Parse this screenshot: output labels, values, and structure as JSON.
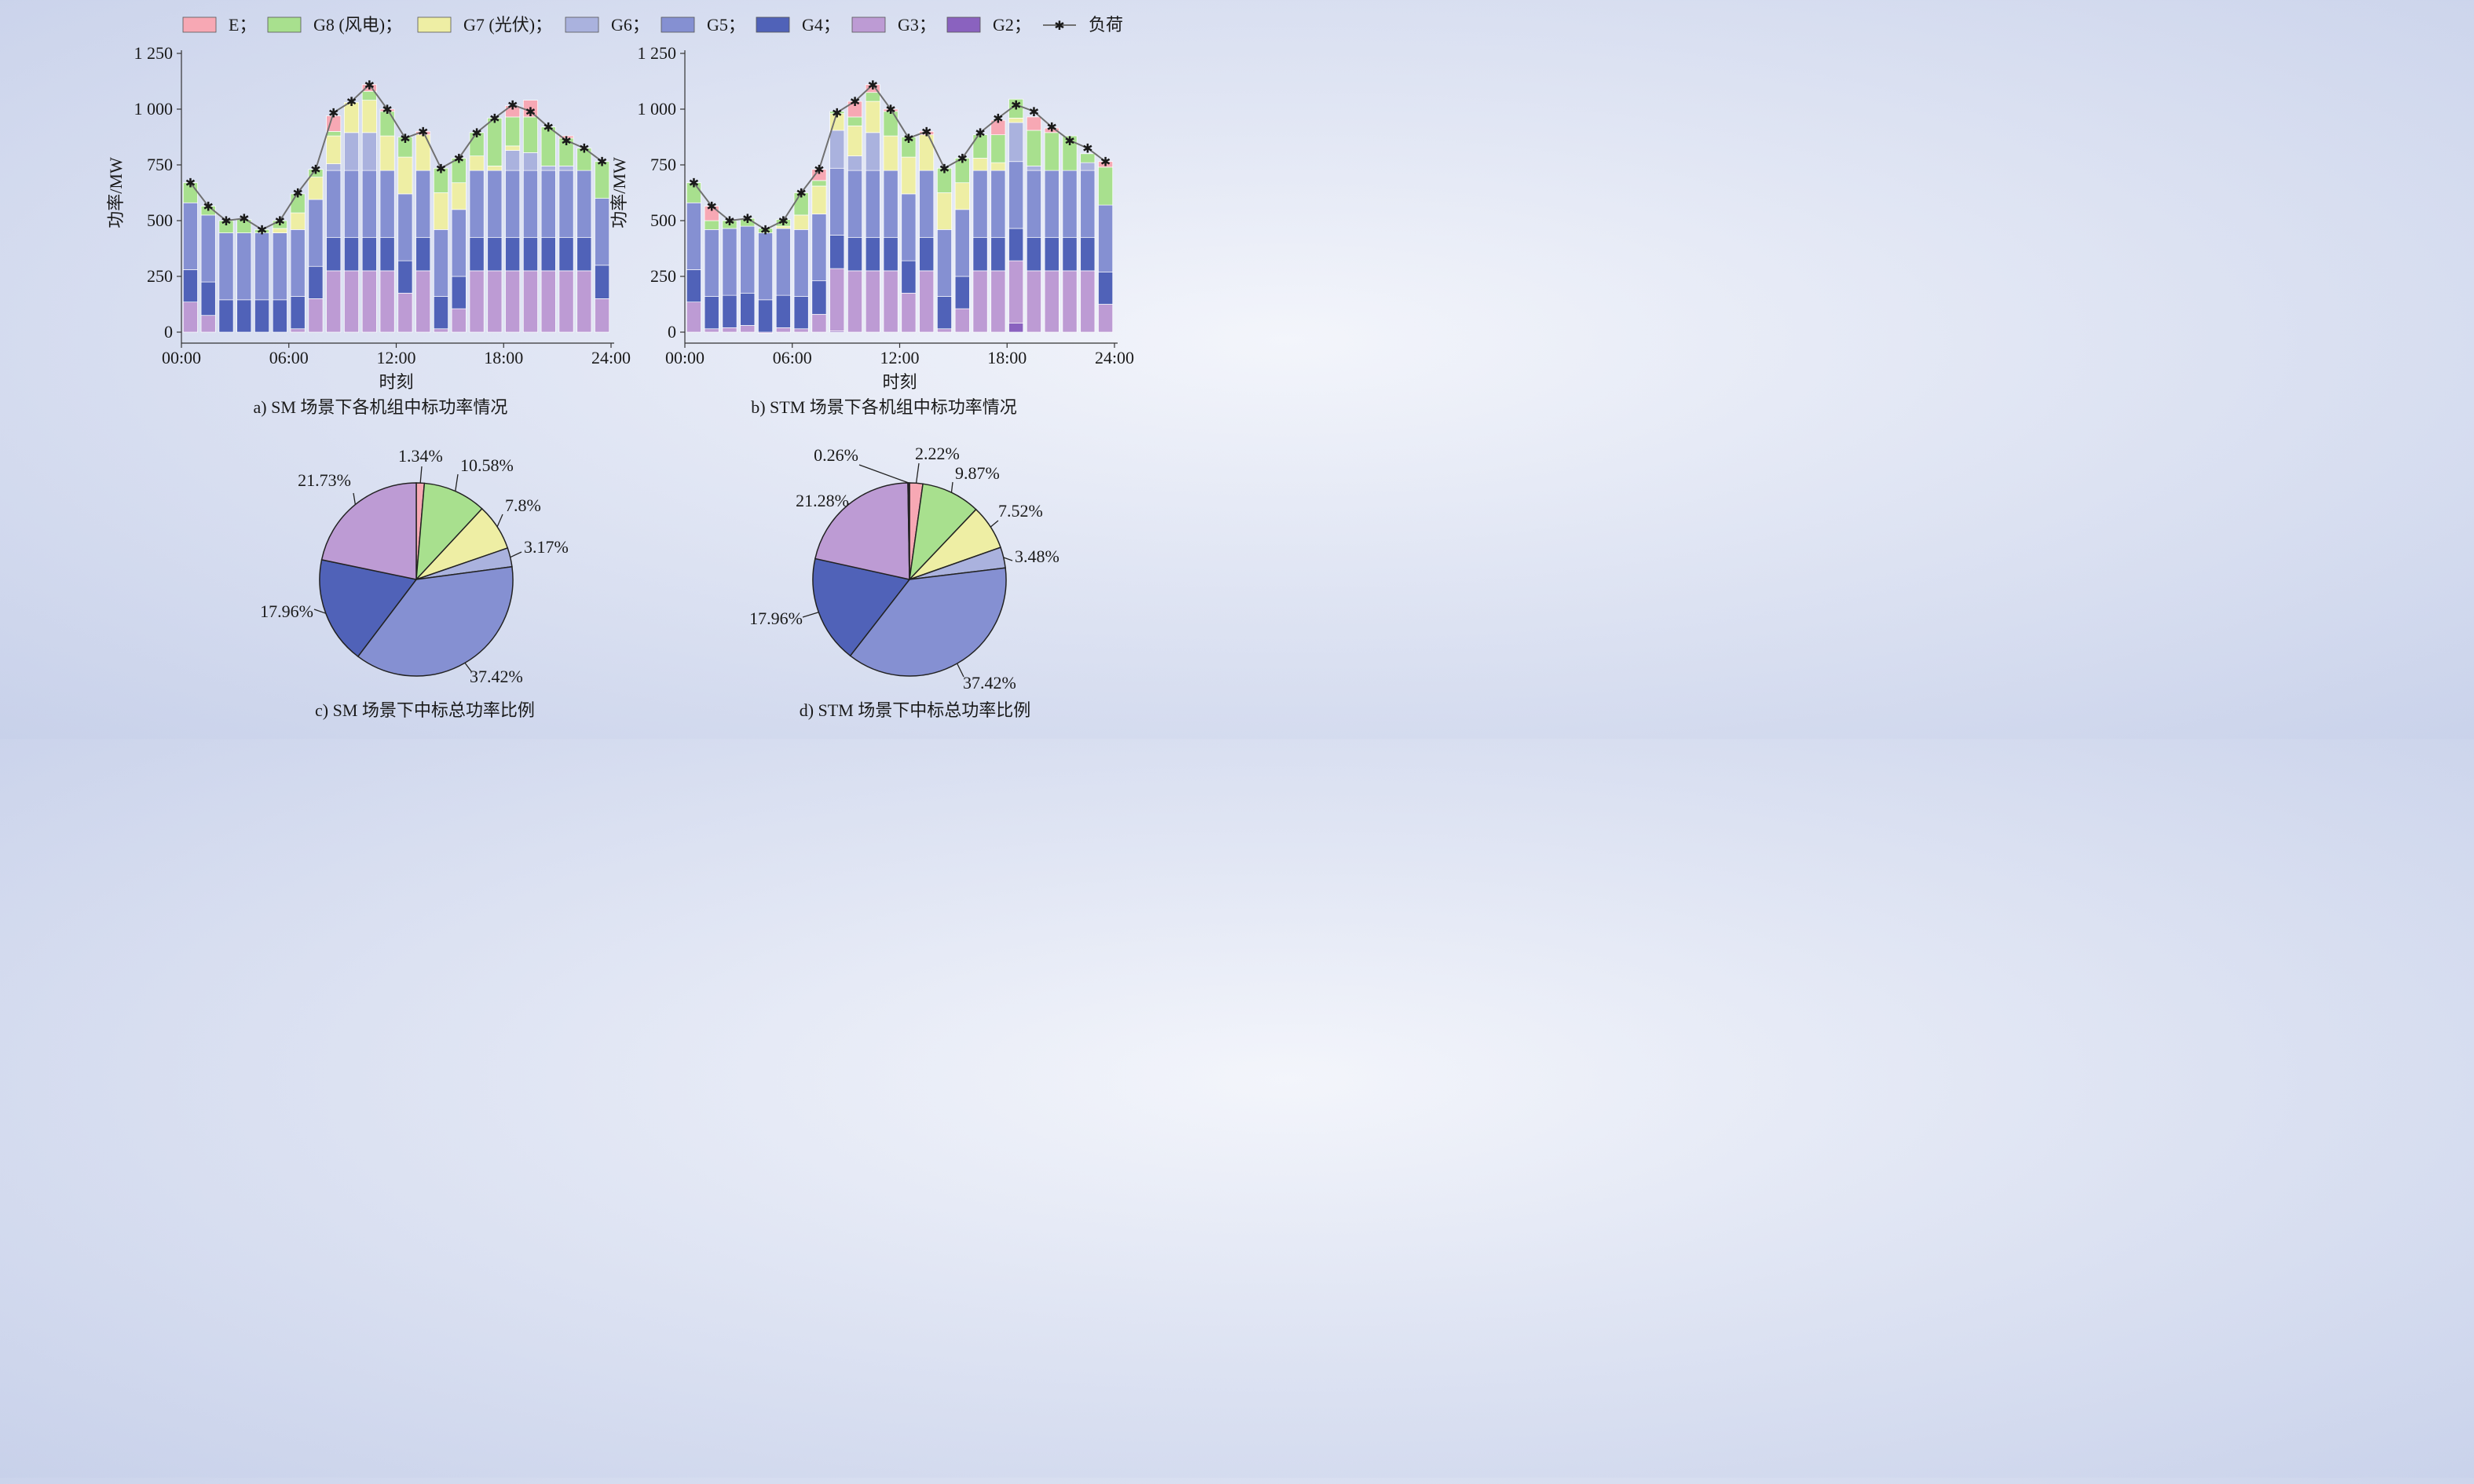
{
  "legend": {
    "items": [
      {
        "label": "E；",
        "color": "#f7a8b4",
        "kind": "box"
      },
      {
        "label": "G8 (风电)；",
        "color": "#a8e08e",
        "kind": "box"
      },
      {
        "label": "G7 (光伏)；",
        "color": "#eeeea4",
        "kind": "box"
      },
      {
        "label": "G6；",
        "color": "#aab2de",
        "kind": "box"
      },
      {
        "label": "G5；",
        "color": "#8590d2",
        "kind": "box"
      },
      {
        "label": "G4；",
        "color": "#5062b8",
        "kind": "box"
      },
      {
        "label": "G3；",
        "color": "#bd9bd4",
        "kind": "box"
      },
      {
        "label": "G2；",
        "color": "#8a62bf",
        "kind": "box"
      },
      {
        "label": "负荷",
        "color": "#707070",
        "kind": "line"
      }
    ]
  },
  "chart_data": [
    {
      "id": "a",
      "type": "bar",
      "stacked": true,
      "caption": "a)  SM 场景下各机组中标功率情况",
      "xlabel": "时刻",
      "ylabel": "功率/MW",
      "xticks": [
        "00:00",
        "06:00",
        "12:00",
        "18:00",
        "24:00"
      ],
      "yticks": [
        "0",
        "250",
        "500",
        "750",
        "1 000",
        "1 250"
      ],
      "ylim": [
        0,
        1250
      ],
      "hours": [
        1,
        2,
        3,
        4,
        5,
        6,
        7,
        8,
        9,
        10,
        11,
        12,
        13,
        14,
        15,
        16,
        17,
        18,
        19,
        20,
        21,
        22,
        23,
        24
      ],
      "series": [
        {
          "name": "G2",
          "color": "#8a62bf",
          "values": [
            0,
            0,
            0,
            0,
            0,
            0,
            0,
            0,
            0,
            0,
            0,
            0,
            0,
            0,
            0,
            0,
            0,
            0,
            0,
            0,
            0,
            0,
            0,
            0
          ]
        },
        {
          "name": "G3",
          "color": "#bd9bd4",
          "values": [
            135,
            75,
            0,
            0,
            0,
            0,
            15,
            150,
            275,
            275,
            275,
            275,
            175,
            275,
            15,
            105,
            275,
            275,
            275,
            275,
            275,
            275,
            275,
            150
          ]
        },
        {
          "name": "G4",
          "color": "#5062b8",
          "values": [
            145,
            150,
            145,
            145,
            145,
            145,
            145,
            145,
            150,
            150,
            150,
            150,
            145,
            150,
            145,
            145,
            150,
            150,
            150,
            150,
            150,
            150,
            150,
            150
          ]
        },
        {
          "name": "G5",
          "color": "#8590d2",
          "values": [
            300,
            300,
            300,
            300,
            300,
            300,
            300,
            300,
            300,
            300,
            300,
            300,
            300,
            300,
            300,
            300,
            300,
            300,
            300,
            300,
            300,
            300,
            300,
            300
          ]
        },
        {
          "name": "G6",
          "color": "#aab2de",
          "values": [
            0,
            0,
            0,
            0,
            0,
            0,
            0,
            0,
            30,
            170,
            170,
            0,
            0,
            0,
            0,
            0,
            0,
            0,
            90,
            80,
            20,
            20,
            0,
            0
          ]
        },
        {
          "name": "G7",
          "color": "#eeeea4",
          "values": [
            0,
            0,
            0,
            0,
            0,
            20,
            75,
            100,
            125,
            135,
            145,
            155,
            165,
            160,
            165,
            120,
            65,
            20,
            20,
            0,
            0,
            0,
            0,
            0
          ]
        },
        {
          "name": "G8",
          "color": "#a8e08e",
          "values": [
            90,
            40,
            55,
            60,
            15,
            35,
            85,
            35,
            20,
            0,
            40,
            110,
            90,
            0,
            110,
            110,
            105,
            215,
            130,
            160,
            175,
            125,
            100,
            165
          ]
        },
        {
          "name": "E",
          "color": "#f7a8b4",
          "values": [
            0,
            0,
            0,
            0,
            0,
            0,
            0,
            0,
            70,
            0,
            30,
            10,
            0,
            15,
            0,
            0,
            0,
            0,
            50,
            75,
            0,
            10,
            0,
            0
          ]
        }
      ],
      "load": [
        670,
        565,
        500,
        510,
        460,
        500,
        625,
        730,
        985,
        1035,
        1110,
        1000,
        870,
        900,
        735,
        780,
        895,
        960,
        1020,
        990,
        920,
        860,
        825,
        765
      ]
    },
    {
      "id": "b",
      "type": "bar",
      "stacked": true,
      "caption": "b) STM 场景下各机组中标功率情况",
      "xlabel": "时刻",
      "ylabel": "功率/MW",
      "xticks": [
        "00:00",
        "06:00",
        "12:00",
        "18:00",
        "24:00"
      ],
      "yticks": [
        "0",
        "250",
        "500",
        "750",
        "1 000",
        "1 250"
      ],
      "ylim": [
        0,
        1250
      ],
      "hours": [
        1,
        2,
        3,
        4,
        5,
        6,
        7,
        8,
        9,
        10,
        11,
        12,
        13,
        14,
        15,
        16,
        17,
        18,
        19,
        20,
        21,
        22,
        23,
        24
      ],
      "series": [
        {
          "name": "G2",
          "color": "#8a62bf",
          "values": [
            0,
            0,
            0,
            0,
            0,
            0,
            0,
            0,
            5,
            0,
            0,
            0,
            0,
            0,
            0,
            0,
            0,
            0,
            40,
            0,
            0,
            0,
            0,
            0
          ]
        },
        {
          "name": "G3",
          "color": "#bd9bd4",
          "values": [
            135,
            15,
            20,
            30,
            -5,
            20,
            15,
            80,
            280,
            275,
            275,
            275,
            175,
            275,
            15,
            105,
            275,
            275,
            280,
            275,
            275,
            275,
            275,
            125
          ]
        },
        {
          "name": "G4",
          "color": "#5062b8",
          "values": [
            145,
            145,
            145,
            145,
            145,
            145,
            145,
            150,
            150,
            150,
            150,
            150,
            145,
            150,
            145,
            145,
            150,
            150,
            145,
            150,
            150,
            150,
            150,
            145
          ]
        },
        {
          "name": "G5",
          "color": "#8590d2",
          "values": [
            300,
            300,
            300,
            300,
            300,
            300,
            300,
            300,
            300,
            300,
            300,
            300,
            300,
            300,
            300,
            300,
            300,
            300,
            300,
            300,
            300,
            300,
            300,
            300
          ]
        },
        {
          "name": "G6",
          "color": "#aab2de",
          "values": [
            0,
            0,
            0,
            0,
            0,
            0,
            0,
            0,
            170,
            65,
            170,
            0,
            0,
            0,
            0,
            0,
            0,
            0,
            175,
            20,
            0,
            0,
            35,
            0
          ]
        },
        {
          "name": "G7",
          "color": "#eeeea4",
          "values": [
            0,
            0,
            0,
            0,
            0,
            10,
            65,
            125,
            75,
            135,
            140,
            155,
            165,
            160,
            165,
            120,
            55,
            35,
            20,
            0,
            0,
            0,
            0,
            0
          ]
        },
        {
          "name": "G8",
          "color": "#a8e08e",
          "values": [
            90,
            40,
            35,
            35,
            20,
            30,
            100,
            25,
            10,
            40,
            40,
            110,
            90,
            0,
            110,
            110,
            105,
            125,
            85,
            160,
            170,
            155,
            40,
            170
          ]
        },
        {
          "name": "E",
          "color": "#f7a8b4",
          "values": [
            0,
            65,
            0,
            0,
            0,
            0,
            0,
            50,
            0,
            70,
            35,
            10,
            0,
            15,
            0,
            0,
            0,
            65,
            0,
            60,
            20,
            0,
            0,
            25
          ]
        }
      ],
      "load": [
        670,
        565,
        500,
        510,
        460,
        500,
        625,
        730,
        985,
        1035,
        1110,
        1000,
        870,
        900,
        735,
        780,
        895,
        960,
        1020,
        990,
        920,
        860,
        825,
        765
      ]
    },
    {
      "id": "c",
      "type": "pie",
      "caption": "c) SM 场景下中标总功率比例",
      "slices": [
        {
          "name": "E",
          "value": 1.34,
          "label": "1.34%",
          "color": "#f7a8b4"
        },
        {
          "name": "G8",
          "value": 10.58,
          "label": "10.58%",
          "color": "#a8e08e"
        },
        {
          "name": "G7",
          "value": 7.8,
          "label": "7.8%",
          "color": "#eeeea4"
        },
        {
          "name": "G6",
          "value": 3.17,
          "label": "3.17%",
          "color": "#aab2de"
        },
        {
          "name": "G5",
          "value": 37.42,
          "label": "37.42%",
          "color": "#8590d2"
        },
        {
          "name": "G4",
          "value": 17.96,
          "label": "17.96%",
          "color": "#5062b8"
        },
        {
          "name": "G3",
          "value": 21.73,
          "label": "21.73%",
          "color": "#bd9bd4"
        }
      ]
    },
    {
      "id": "d",
      "type": "pie",
      "caption": "d) STM 场景下中标总功率比例",
      "slices": [
        {
          "name": "E",
          "value": 2.22,
          "label": "2.22%",
          "color": "#f7a8b4"
        },
        {
          "name": "G8",
          "value": 9.87,
          "label": "9.87%",
          "color": "#a8e08e"
        },
        {
          "name": "G7",
          "value": 7.52,
          "label": "7.52%",
          "color": "#eeeea4"
        },
        {
          "name": "G6",
          "value": 3.48,
          "label": "3.48%",
          "color": "#aab2de"
        },
        {
          "name": "G5",
          "value": 37.42,
          "label": "37.42%",
          "color": "#8590d2"
        },
        {
          "name": "G4",
          "value": 17.96,
          "label": "17.96%",
          "color": "#5062b8"
        },
        {
          "name": "G3",
          "value": 21.28,
          "label": "21.28%",
          "color": "#bd9bd4"
        },
        {
          "name": "G2",
          "value": 0.26,
          "label": "0.26%",
          "color": "#2b1f3a"
        }
      ]
    }
  ]
}
